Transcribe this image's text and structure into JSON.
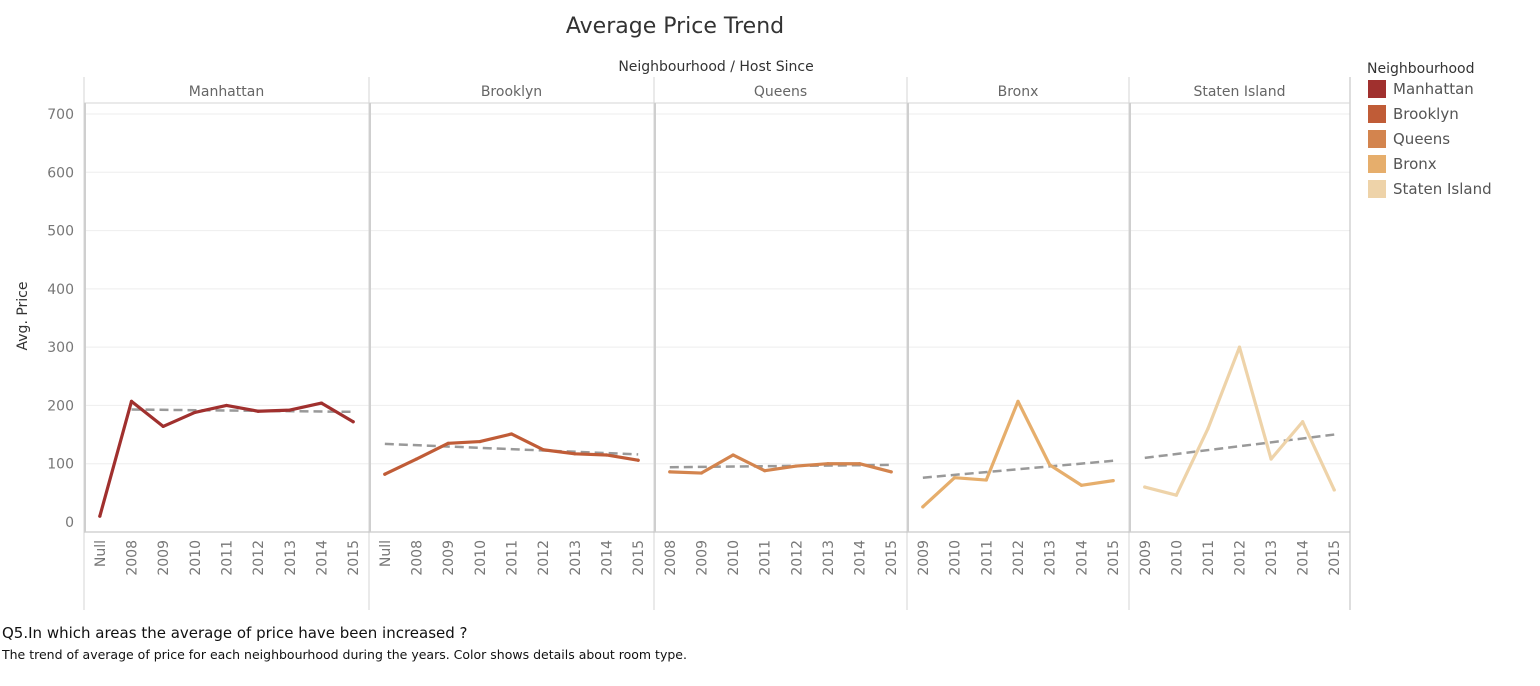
{
  "chart_data": {
    "type": "line",
    "title": "Average Price Trend",
    "column_header": "Neighbourhood  /  Host Since",
    "ylabel": "Avg. Price",
    "ylim": [
      0,
      700
    ],
    "yticks": [
      0,
      100,
      200,
      300,
      400,
      500,
      600,
      700
    ],
    "grid": true,
    "legend": {
      "title": "Neighbourhood",
      "placement": "right",
      "entries": [
        {
          "name": "Manhattan",
          "color": "#a0302e"
        },
        {
          "name": "Brooklyn",
          "color": "#c05c37"
        },
        {
          "name": "Queens",
          "color": "#d3844e"
        },
        {
          "name": "Bronx",
          "color": "#e6ae6c"
        },
        {
          "name": "Staten Island",
          "color": "#eed3a9"
        }
      ]
    },
    "trend_line_color": "#999999",
    "panels": [
      {
        "name": "Manhattan",
        "color": "#a0302e",
        "categories": [
          "Null",
          "2008",
          "2009",
          "2010",
          "2011",
          "2012",
          "2013",
          "2014",
          "2015"
        ],
        "values": [
          10,
          207,
          164,
          188,
          200,
          190,
          192,
          204,
          172
        ],
        "trend": {
          "start": 193,
          "end": 189
        }
      },
      {
        "name": "Brooklyn",
        "color": "#c05c37",
        "categories": [
          "Null",
          "2008",
          "2009",
          "2010",
          "2011",
          "2012",
          "2013",
          "2014",
          "2015"
        ],
        "values": [
          82,
          108,
          135,
          138,
          151,
          124,
          117,
          115,
          106
        ],
        "trend": {
          "start": 134,
          "end": 116
        }
      },
      {
        "name": "Queens",
        "color": "#d3844e",
        "categories": [
          "2008",
          "2009",
          "2010",
          "2011",
          "2012",
          "2013",
          "2014",
          "2015"
        ],
        "values": [
          86,
          84,
          115,
          88,
          96,
          100,
          100,
          86
        ],
        "trend": {
          "start": 94,
          "end": 98
        }
      },
      {
        "name": "Bronx",
        "color": "#e6ae6c",
        "categories": [
          "2009",
          "2010",
          "2011",
          "2012",
          "2013",
          "2014",
          "2015"
        ],
        "values": [
          26,
          76,
          72,
          207,
          98,
          63,
          71
        ],
        "trend": {
          "start": 76,
          "end": 105
        }
      },
      {
        "name": "Staten Island",
        "color": "#eed3a9",
        "categories": [
          "2009",
          "2010",
          "2011",
          "2012",
          "2013",
          "2014",
          "2015"
        ],
        "values": [
          60,
          46,
          160,
          300,
          108,
          172,
          55
        ],
        "trend": {
          "start": 110,
          "end": 150
        }
      }
    ]
  },
  "caption": {
    "question": "Q5.In which areas the average of price have been increased ?",
    "description": "The trend of average of price for each neighbourhood during the years.  Color shows details about room type."
  }
}
